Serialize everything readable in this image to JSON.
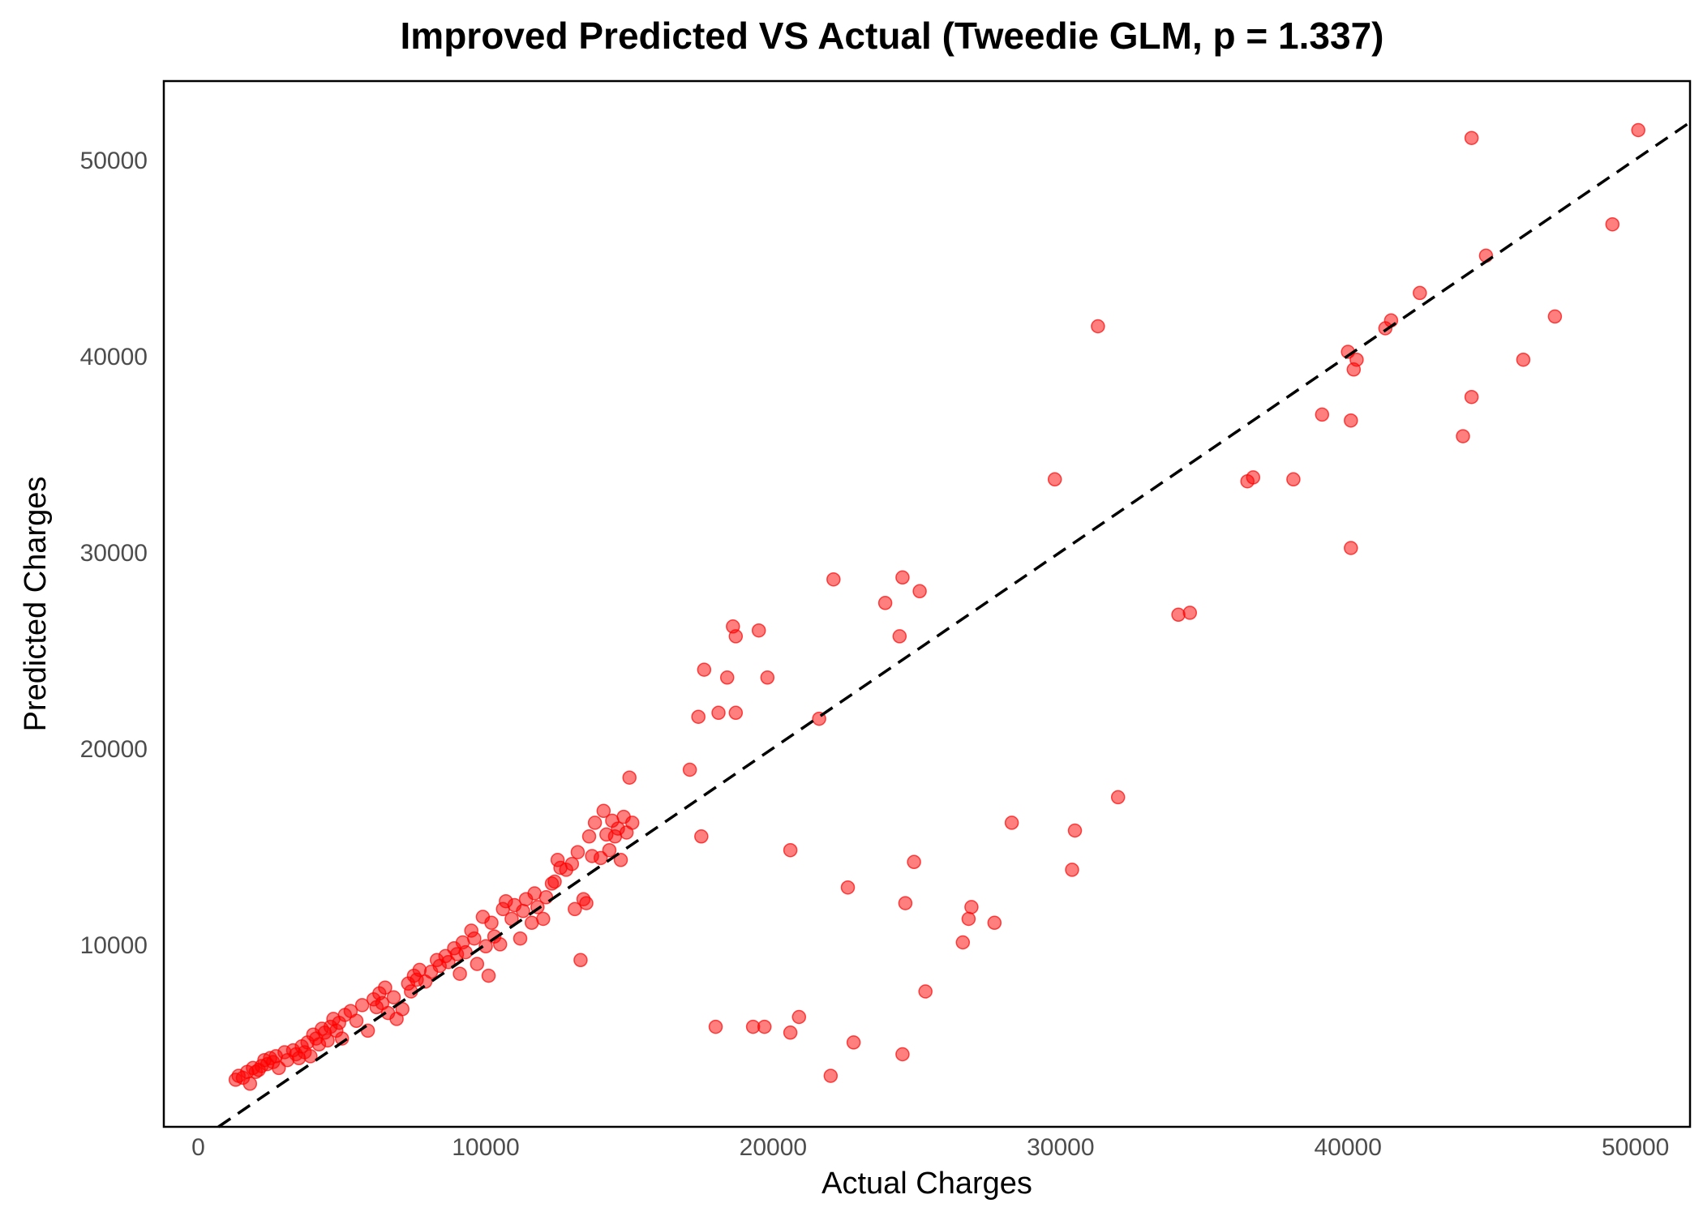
{
  "chart_data": {
    "type": "scatter",
    "title": "Improved Predicted VS Actual (Tweedie GLM, p = 1.337)",
    "xlabel": "Actual Charges",
    "ylabel": "Predicted Charges",
    "xlim": [
      -1200,
      51900
    ],
    "ylim": [
      700,
      54000
    ],
    "xticks": [
      0,
      10000,
      20000,
      30000,
      40000,
      50000
    ],
    "yticks": [
      10000,
      20000,
      30000,
      40000,
      50000
    ],
    "grid": false,
    "legend": "none",
    "point_color": "#ff0000",
    "point_opacity": 0.5,
    "reference_line": {
      "style": "dashed",
      "color": "#000000",
      "slope": 1,
      "intercept": 0
    },
    "points": [
      [
        1300,
        3100
      ],
      [
        1400,
        3300
      ],
      [
        1550,
        3200
      ],
      [
        1700,
        3500
      ],
      [
        1800,
        2900
      ],
      [
        1900,
        3700
      ],
      [
        2000,
        3500
      ],
      [
        2100,
        3600
      ],
      [
        2200,
        3800
      ],
      [
        2300,
        4100
      ],
      [
        2400,
        3900
      ],
      [
        2500,
        4200
      ],
      [
        2600,
        4000
      ],
      [
        2700,
        4300
      ],
      [
        2800,
        3700
      ],
      [
        3000,
        4500
      ],
      [
        3100,
        4100
      ],
      [
        3300,
        4600
      ],
      [
        3400,
        4400
      ],
      [
        3500,
        4200
      ],
      [
        3600,
        4800
      ],
      [
        3700,
        4500
      ],
      [
        3800,
        5000
      ],
      [
        3900,
        4300
      ],
      [
        4000,
        5400
      ],
      [
        4100,
        5200
      ],
      [
        4200,
        4900
      ],
      [
        4300,
        5700
      ],
      [
        4400,
        5500
      ],
      [
        4500,
        5100
      ],
      [
        4600,
        5800
      ],
      [
        4700,
        6200
      ],
      [
        4800,
        5600
      ],
      [
        4900,
        6000
      ],
      [
        5000,
        5200
      ],
      [
        5100,
        6400
      ],
      [
        5300,
        6600
      ],
      [
        5500,
        6100
      ],
      [
        5700,
        6900
      ],
      [
        5900,
        5600
      ],
      [
        6100,
        7200
      ],
      [
        6200,
        6800
      ],
      [
        6300,
        7500
      ],
      [
        6400,
        7000
      ],
      [
        6500,
        7800
      ],
      [
        6600,
        6500
      ],
      [
        6800,
        7300
      ],
      [
        6900,
        6200
      ],
      [
        7100,
        6700
      ],
      [
        7300,
        8000
      ],
      [
        7400,
        7600
      ],
      [
        7500,
        8400
      ],
      [
        7600,
        8200
      ],
      [
        7700,
        8700
      ],
      [
        7900,
        8100
      ],
      [
        8100,
        8600
      ],
      [
        8300,
        9200
      ],
      [
        8400,
        8900
      ],
      [
        8600,
        9400
      ],
      [
        8700,
        9100
      ],
      [
        8900,
        9800
      ],
      [
        9000,
        9500
      ],
      [
        9100,
        8500
      ],
      [
        9200,
        10100
      ],
      [
        9300,
        9600
      ],
      [
        9500,
        10700
      ],
      [
        9600,
        10300
      ],
      [
        9700,
        9000
      ],
      [
        9900,
        11400
      ],
      [
        10000,
        9900
      ],
      [
        10100,
        8400
      ],
      [
        10200,
        11100
      ],
      [
        10300,
        10400
      ],
      [
        10500,
        10000
      ],
      [
        10600,
        11800
      ],
      [
        10700,
        12200
      ],
      [
        10900,
        11300
      ],
      [
        11000,
        12000
      ],
      [
        11200,
        10300
      ],
      [
        11300,
        11700
      ],
      [
        11400,
        12300
      ],
      [
        11600,
        11100
      ],
      [
        11700,
        12600
      ],
      [
        11800,
        11900
      ],
      [
        12000,
        11300
      ],
      [
        12100,
        12400
      ],
      [
        12300,
        13100
      ],
      [
        12400,
        13200
      ],
      [
        12500,
        14300
      ],
      [
        12600,
        13900
      ],
      [
        12800,
        13800
      ],
      [
        13000,
        14100
      ],
      [
        13100,
        11800
      ],
      [
        13200,
        14700
      ],
      [
        13300,
        9200
      ],
      [
        13400,
        12300
      ],
      [
        13500,
        12100
      ],
      [
        13600,
        15500
      ],
      [
        13700,
        14500
      ],
      [
        13800,
        16200
      ],
      [
        14000,
        14400
      ],
      [
        14100,
        16800
      ],
      [
        14200,
        15600
      ],
      [
        14300,
        14800
      ],
      [
        14400,
        16300
      ],
      [
        14500,
        15500
      ],
      [
        14600,
        15900
      ],
      [
        14700,
        14300
      ],
      [
        14800,
        16500
      ],
      [
        14900,
        15700
      ],
      [
        15000,
        18500
      ],
      [
        15100,
        16200
      ],
      [
        17100,
        18900
      ],
      [
        17400,
        21600
      ],
      [
        17500,
        15500
      ],
      [
        17600,
        24000
      ],
      [
        18000,
        5800
      ],
      [
        18100,
        21800
      ],
      [
        18400,
        23600
      ],
      [
        18600,
        26200
      ],
      [
        18700,
        25700
      ],
      [
        18700,
        21800
      ],
      [
        19300,
        5800
      ],
      [
        19500,
        26000
      ],
      [
        19700,
        5800
      ],
      [
        19800,
        23600
      ],
      [
        20600,
        14800
      ],
      [
        20600,
        5500
      ],
      [
        20900,
        6300
      ],
      [
        21600,
        21500
      ],
      [
        22000,
        3300
      ],
      [
        22100,
        28600
      ],
      [
        22600,
        12900
      ],
      [
        22800,
        5000
      ],
      [
        23900,
        27400
      ],
      [
        24400,
        25700
      ],
      [
        24500,
        28700
      ],
      [
        24500,
        4400
      ],
      [
        24600,
        12100
      ],
      [
        24900,
        14200
      ],
      [
        25100,
        28000
      ],
      [
        25300,
        7600
      ],
      [
        26600,
        10100
      ],
      [
        26800,
        11300
      ],
      [
        26900,
        11900
      ],
      [
        27700,
        11100
      ],
      [
        28300,
        16200
      ],
      [
        29800,
        33700
      ],
      [
        30400,
        13800
      ],
      [
        30500,
        15800
      ],
      [
        31300,
        41500
      ],
      [
        32000,
        17500
      ],
      [
        34100,
        26800
      ],
      [
        34500,
        26900
      ],
      [
        36500,
        33600
      ],
      [
        36700,
        33800
      ],
      [
        38100,
        33700
      ],
      [
        39100,
        37000
      ],
      [
        40100,
        36700
      ],
      [
        40000,
        40200
      ],
      [
        40100,
        30200
      ],
      [
        40200,
        39300
      ],
      [
        40300,
        39800
      ],
      [
        41300,
        41400
      ],
      [
        41500,
        41800
      ],
      [
        42500,
        43200
      ],
      [
        44000,
        35900
      ],
      [
        44300,
        51100
      ],
      [
        44300,
        37900
      ],
      [
        44800,
        45100
      ],
      [
        46100,
        39800
      ],
      [
        47200,
        42000
      ],
      [
        49200,
        46700
      ],
      [
        50100,
        51500
      ]
    ]
  }
}
